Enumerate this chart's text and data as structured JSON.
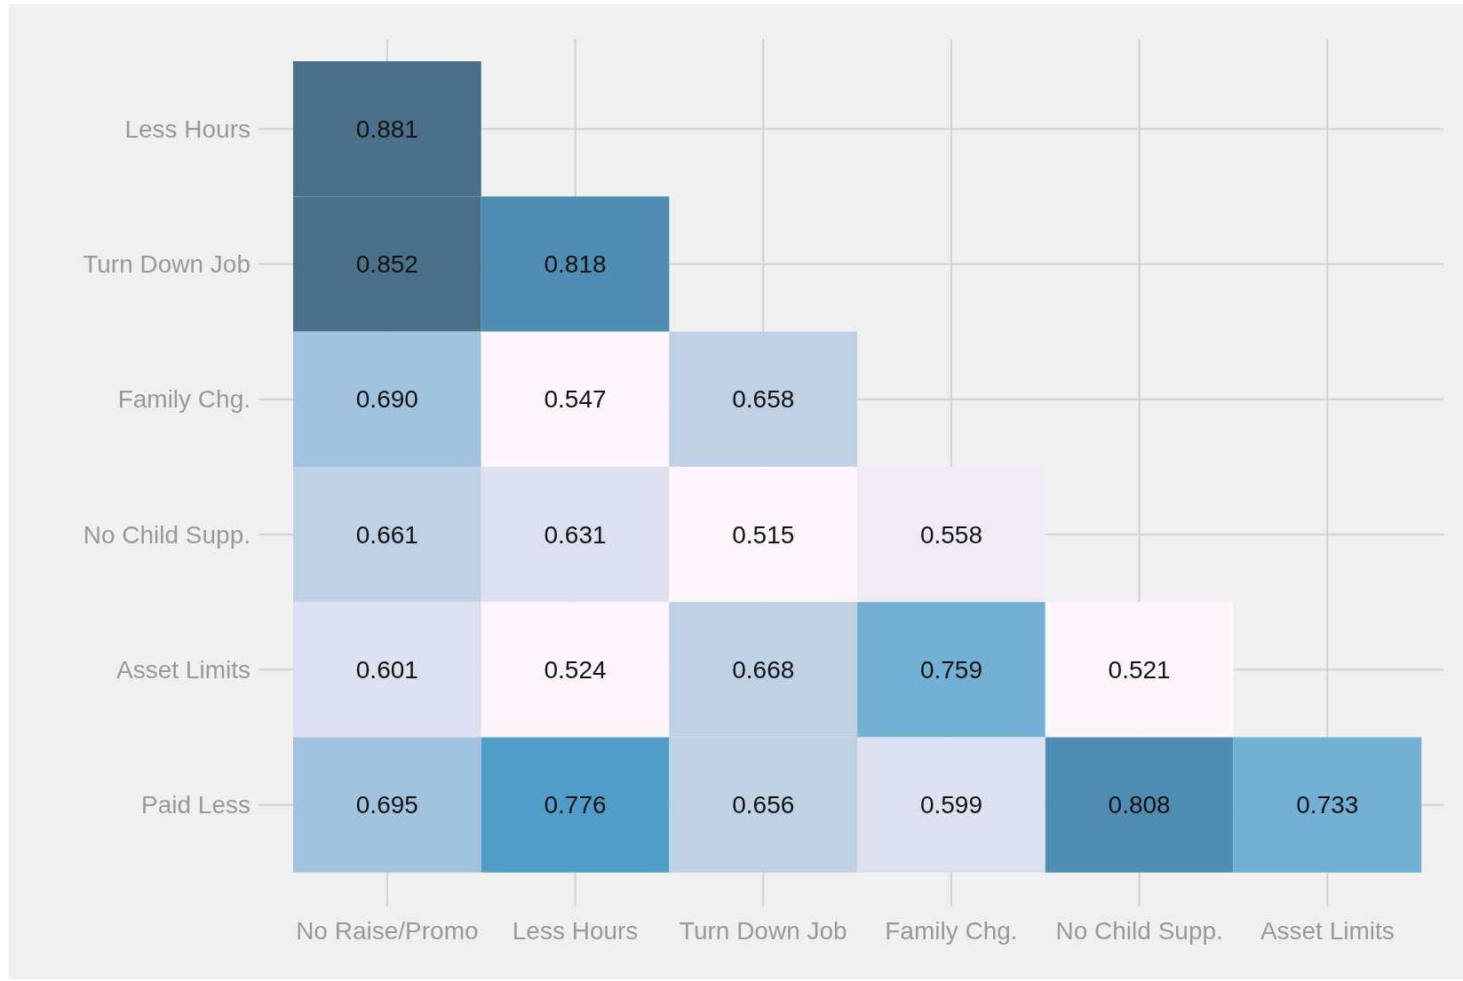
{
  "chart_data": {
    "type": "heatmap",
    "categories": [
      "No Raise/Promo",
      "Less Hours",
      "Turn Down Job",
      "Family Chg.",
      "No Child Supp.",
      "Asset Limits"
    ],
    "y_categories": [
      "Less Hours",
      "Turn Down Job",
      "Family Chg.",
      "No Child Supp.",
      "Asset Limits",
      "Paid Less"
    ],
    "cells": [
      [
        0.881,
        null,
        null,
        null,
        null,
        null
      ],
      [
        0.852,
        0.818,
        null,
        null,
        null,
        null
      ],
      [
        0.69,
        0.547,
        0.658,
        null,
        null,
        null
      ],
      [
        0.661,
        0.631,
        0.515,
        0.558,
        null,
        null
      ],
      [
        0.601,
        0.524,
        0.668,
        0.759,
        0.521,
        null
      ],
      [
        0.695,
        0.776,
        0.656,
        0.599,
        0.808,
        0.733
      ]
    ],
    "cell_labels": [
      [
        "0.881",
        null,
        null,
        null,
        null,
        null
      ],
      [
        "0.852",
        "0.818",
        null,
        null,
        null,
        null
      ],
      [
        "0.690",
        "0.547",
        "0.658",
        null,
        null,
        null
      ],
      [
        "0.661",
        "0.631",
        "0.515",
        "0.558",
        null,
        null
      ],
      [
        "0.601",
        "0.524",
        "0.668",
        "0.759",
        "0.521",
        null
      ],
      [
        "0.695",
        "0.776",
        "0.656",
        "0.599",
        "0.808",
        "0.733"
      ]
    ],
    "grid": true
  }
}
